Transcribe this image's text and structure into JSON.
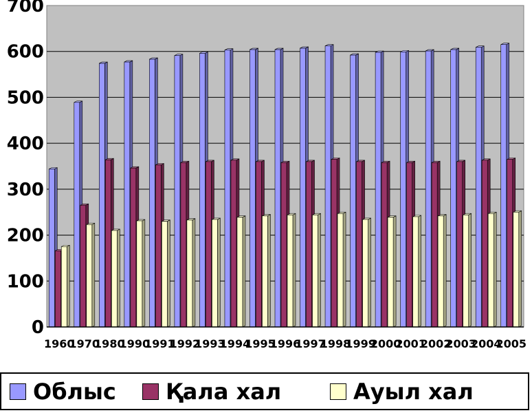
{
  "chart_data": {
    "type": "bar",
    "categories": [
      "1960",
      "1970",
      "1980",
      "1990",
      "1991",
      "1992",
      "1993",
      "1994",
      "1995",
      "1996",
      "1997",
      "1998",
      "1999",
      "2000",
      "2001",
      "2002",
      "2003",
      "2004",
      "2005"
    ],
    "series": [
      {
        "name": "Облыс",
        "color": "#9999ff",
        "values": [
          344,
          489,
          574,
          577,
          583,
          591,
          596,
          603,
          604,
          604,
          607,
          612,
          592,
          598,
          599,
          601,
          604,
          609,
          615
        ]
      },
      {
        "name": "Қала хал",
        "color": "#993366",
        "values": [
          166,
          265,
          364,
          346,
          353,
          358,
          360,
          363,
          360,
          358,
          360,
          365,
          360,
          358,
          358,
          358,
          360,
          363,
          365
        ]
      },
      {
        "name": "Ауыл хал",
        "color": "#ffffcc",
        "values": [
          175,
          223,
          210,
          231,
          230,
          233,
          234,
          239,
          242,
          244,
          244,
          247,
          234,
          239,
          240,
          242,
          244,
          247,
          250
        ]
      }
    ],
    "ylim": [
      0,
      700
    ],
    "yticks": [
      "0",
      "100",
      "200",
      "300",
      "400",
      "500",
      "600",
      "700"
    ],
    "grid": true,
    "legend_position": "bottom",
    "plot_background": "#c0c0c0"
  }
}
